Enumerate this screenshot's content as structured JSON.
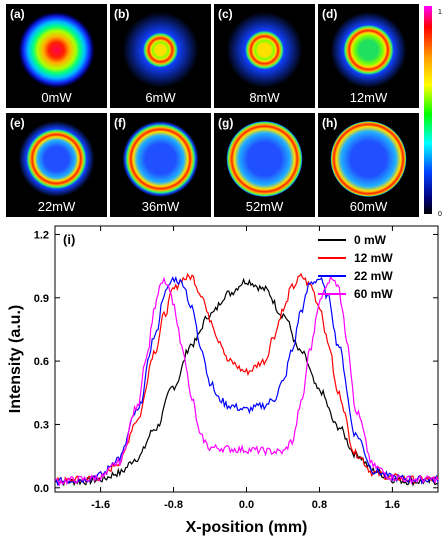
{
  "panels": [
    {
      "tag": "(a)",
      "power": "0mW",
      "ring": 0.0
    },
    {
      "tag": "(b)",
      "power": "6mW",
      "ring": 0.25
    },
    {
      "tag": "(c)",
      "power": "8mW",
      "ring": 0.3
    },
    {
      "tag": "(d)",
      "power": "12mW",
      "ring": 0.45
    },
    {
      "tag": "(e)",
      "power": "22mW",
      "ring": 0.58
    },
    {
      "tag": "(f)",
      "power": "36mW",
      "ring": 0.72
    },
    {
      "tag": "(g)",
      "power": "52mW",
      "ring": 0.8
    },
    {
      "tag": "(h)",
      "power": "60mW",
      "ring": 0.85
    }
  ],
  "colorbar": {
    "max_label": "1",
    "min_label": "0"
  },
  "chart_data": {
    "type": "line",
    "panel_label": "(i)",
    "xlabel": "X-position (mm)",
    "ylabel": "Intensity (a.u.)",
    "xlim": [
      -2.1,
      2.1
    ],
    "ylim": [
      -0.02,
      1.24
    ],
    "xticks": [
      {
        "value": -1.6,
        "label": "-1.6"
      },
      {
        "value": -0.8,
        "label": "-0.8"
      },
      {
        "value": 0.0,
        "label": "0.0"
      },
      {
        "value": 0.8,
        "label": "0.8"
      },
      {
        "value": 1.6,
        "label": "1.6"
      }
    ],
    "yticks": [
      {
        "value": 0.0,
        "label": "0.0"
      },
      {
        "value": 0.3,
        "label": "0.3"
      },
      {
        "value": 0.6,
        "label": "0.6"
      },
      {
        "value": 0.9,
        "label": "0.9"
      },
      {
        "value": 1.2,
        "label": "1.2"
      }
    ],
    "legend_position": "top-right",
    "series": [
      {
        "name": "0  mW",
        "color": "#000000",
        "x": [
          -2.1,
          -1.8,
          -1.6,
          -1.4,
          -1.2,
          -1.0,
          -0.8,
          -0.6,
          -0.4,
          -0.2,
          0.0,
          0.2,
          0.4,
          0.6,
          0.8,
          1.0,
          1.2,
          1.4,
          1.6,
          1.8,
          2.1
        ],
        "y": [
          0.03,
          0.03,
          0.04,
          0.07,
          0.14,
          0.28,
          0.48,
          0.68,
          0.82,
          0.92,
          0.98,
          0.94,
          0.82,
          0.64,
          0.46,
          0.29,
          0.16,
          0.08,
          0.04,
          0.03,
          0.03
        ]
      },
      {
        "name": "12 mW",
        "color": "#ff0000",
        "x": [
          -2.1,
          -1.8,
          -1.6,
          -1.4,
          -1.2,
          -1.0,
          -0.9,
          -0.8,
          -0.7,
          -0.6,
          -0.5,
          -0.4,
          -0.3,
          -0.2,
          0.0,
          0.2,
          0.3,
          0.4,
          0.5,
          0.6,
          0.7,
          0.8,
          0.9,
          1.0,
          1.2,
          1.4,
          1.6,
          1.8,
          2.1
        ],
        "y": [
          0.03,
          0.04,
          0.05,
          0.12,
          0.32,
          0.65,
          0.82,
          0.94,
          0.99,
          1.0,
          0.92,
          0.8,
          0.7,
          0.6,
          0.55,
          0.6,
          0.72,
          0.84,
          0.95,
          1.0,
          0.96,
          0.86,
          0.68,
          0.45,
          0.16,
          0.07,
          0.05,
          0.04,
          0.04
        ]
      },
      {
        "name": "22 mW",
        "color": "#0000ff",
        "x": [
          -2.1,
          -1.8,
          -1.6,
          -1.4,
          -1.2,
          -1.0,
          -0.9,
          -0.8,
          -0.7,
          -0.6,
          -0.5,
          -0.4,
          -0.3,
          -0.2,
          0.0,
          0.2,
          0.3,
          0.4,
          0.5,
          0.6,
          0.7,
          0.8,
          0.9,
          1.0,
          1.2,
          1.4,
          1.6,
          1.8,
          2.1
        ],
        "y": [
          0.03,
          0.04,
          0.06,
          0.14,
          0.36,
          0.72,
          0.92,
          0.99,
          0.97,
          0.85,
          0.67,
          0.5,
          0.42,
          0.39,
          0.37,
          0.39,
          0.42,
          0.5,
          0.65,
          0.84,
          0.97,
          0.99,
          0.9,
          0.68,
          0.25,
          0.08,
          0.05,
          0.04,
          0.04
        ]
      },
      {
        "name": "60 mW",
        "color": "#ff00ff",
        "x": [
          -2.1,
          -1.8,
          -1.6,
          -1.4,
          -1.2,
          -1.1,
          -1.0,
          -0.95,
          -0.9,
          -0.85,
          -0.8,
          -0.7,
          -0.6,
          -0.5,
          -0.4,
          0.0,
          0.4,
          0.5,
          0.6,
          0.7,
          0.8,
          0.9,
          0.95,
          1.0,
          1.05,
          1.1,
          1.2,
          1.4,
          1.6,
          1.8,
          2.1
        ],
        "y": [
          0.03,
          0.04,
          0.05,
          0.12,
          0.38,
          0.62,
          0.86,
          0.95,
          0.98,
          0.94,
          0.86,
          0.66,
          0.42,
          0.24,
          0.19,
          0.18,
          0.17,
          0.22,
          0.4,
          0.66,
          0.88,
          0.98,
          1.0,
          0.96,
          0.86,
          0.7,
          0.36,
          0.1,
          0.05,
          0.04,
          0.04
        ]
      }
    ]
  }
}
